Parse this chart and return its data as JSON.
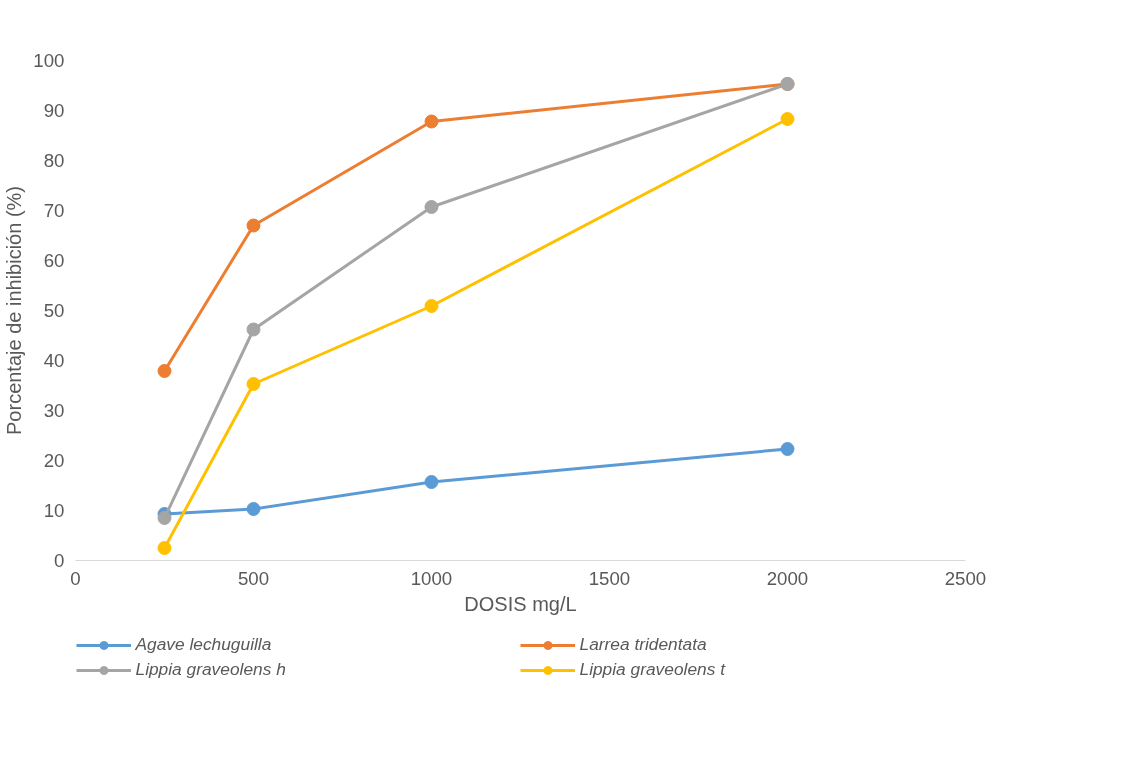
{
  "chart_data": {
    "type": "line",
    "xlabel": "DOSIS mg/L",
    "ylabel": "Porcentaje de inhibición (%)",
    "x": [
      250,
      500,
      1000,
      2000
    ],
    "series": [
      {
        "name": "Agave lechuguilla",
        "color": "#5b9bd5",
        "values": [
          9.3,
          10.3,
          15.7,
          22.3
        ]
      },
      {
        "name": "Larrea tridentata",
        "color": "#ed7d31",
        "values": [
          37.9,
          67.0,
          87.8,
          95.3
        ]
      },
      {
        "name": "Lippia graveolens h",
        "color": "#a5a5a5",
        "values": [
          8.5,
          46.2,
          70.7,
          95.3
        ]
      },
      {
        "name": "Lippia graveolens t",
        "color": "#ffc000",
        "values": [
          2.5,
          35.3,
          50.9,
          88.3
        ]
      }
    ],
    "xlim": [
      0,
      2500
    ],
    "xticks": [
      0,
      500,
      1000,
      1500,
      2000,
      2500
    ],
    "ylim": [
      0,
      100
    ],
    "yticks": [
      0,
      10,
      20,
      30,
      40,
      50,
      60,
      70,
      80,
      90,
      100
    ],
    "grid": false,
    "legend": "bottom",
    "marker": "circle",
    "line_style": "solid"
  }
}
